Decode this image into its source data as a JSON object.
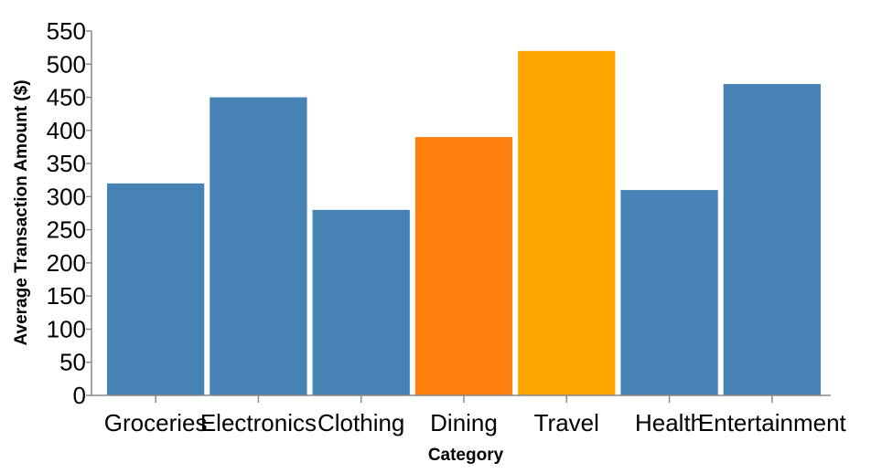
{
  "chart_data": {
    "type": "bar",
    "xlabel": "Category",
    "ylabel": "Average Transaction Amount ($)",
    "ylim": [
      0,
      550
    ],
    "y_ticks": [
      0,
      50,
      100,
      150,
      200,
      250,
      300,
      350,
      400,
      450,
      500,
      550
    ],
    "grid": false,
    "categories": [
      "Groceries",
      "Electronics",
      "Clothing",
      "Dining",
      "Travel",
      "Health",
      "Entertainment"
    ],
    "values": [
      320,
      450,
      280,
      390,
      520,
      310,
      470
    ],
    "colors": [
      "#4682b4",
      "#4682b4",
      "#4682b4",
      "#ff7f0e",
      "#ffa500",
      "#4682b4",
      "#4682b4"
    ]
  }
}
